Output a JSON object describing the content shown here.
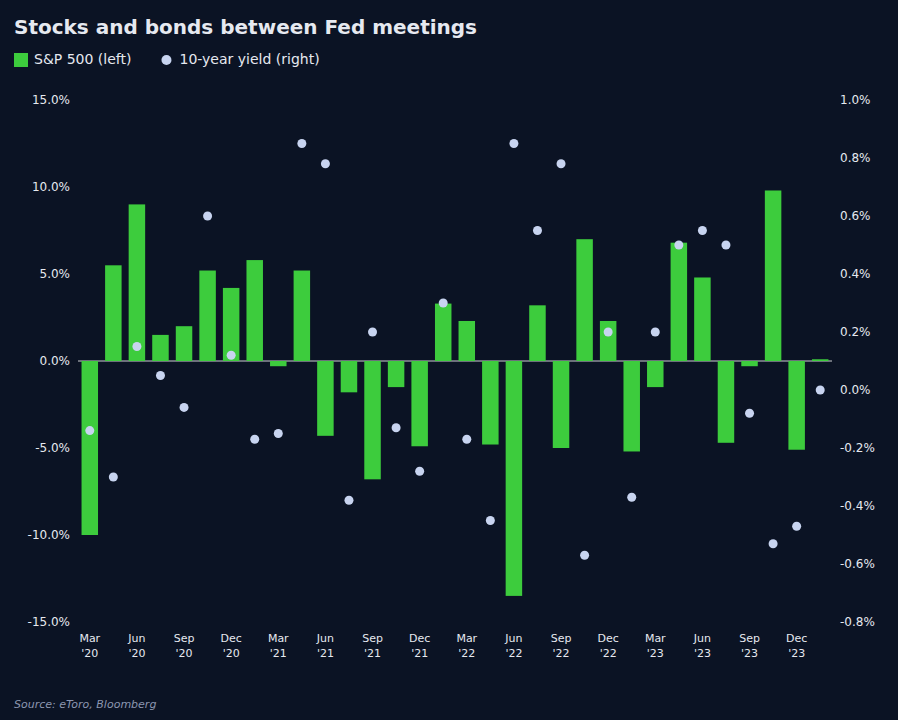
{
  "chart_data": {
    "type": "bar",
    "title": "Stocks and bonds between Fed meetings",
    "annotations": [
      "Source: eToro, Bloomberg"
    ],
    "categories": [
      "Mar\n'20",
      null,
      "Jun\n'20",
      null,
      "Sep\n'20",
      null,
      "Dec\n'20",
      null,
      "Mar\n'21",
      null,
      "Jun\n'21",
      null,
      "Sep\n'21",
      null,
      "Dec\n'21",
      null,
      "Mar\n'22",
      null,
      "Jun\n'22",
      null,
      "Sep\n'22",
      null,
      "Dec\n'22",
      null,
      "Mar\n'23",
      null,
      "Jun\n'23",
      null,
      "Sep\n'23",
      null,
      "Dec\n'23",
      null
    ],
    "series": [
      {
        "name": "S&P 500 (left)",
        "type": "bar",
        "color": "#3dcc3d",
        "values": [
          -10.0,
          5.5,
          9.0,
          1.5,
          2.0,
          5.2,
          4.2,
          5.8,
          -0.3,
          5.2,
          -4.3,
          -1.8,
          -6.8,
          -1.5,
          -4.9,
          3.3,
          2.3,
          -4.8,
          -13.5,
          3.2,
          -5.0,
          7.0,
          2.3,
          -5.2,
          -1.5,
          6.8,
          4.8,
          -4.7,
          -0.3,
          9.8,
          -5.1,
          0.1
        ]
      },
      {
        "name": "10-year yield (right)",
        "type": "scatter",
        "marker": "circle",
        "color": "#c8d4f0",
        "axis": "y2",
        "values": [
          -0.14,
          -0.3,
          0.15,
          0.05,
          -0.06,
          0.6,
          0.12,
          -0.17,
          -0.15,
          0.85,
          0.78,
          -0.38,
          0.2,
          -0.13,
          -0.28,
          0.3,
          -0.17,
          -0.45,
          0.85,
          0.55,
          0.78,
          -0.57,
          0.2,
          -0.37,
          0.2,
          0.5,
          0.55,
          0.5,
          -0.08,
          -0.53,
          -0.47,
          0.0
        ]
      }
    ],
    "ylim": [
      -15.0,
      15.0
    ],
    "yticks": [
      {
        "value": -15.0,
        "label": "-15.0%"
      },
      {
        "value": -10.0,
        "label": "-10.0%"
      },
      {
        "value": -5.0,
        "label": "-5.0%"
      },
      {
        "value": 0.0,
        "label": "0.0%"
      },
      {
        "value": 5.0,
        "label": "5.0%"
      },
      {
        "value": 10.0,
        "label": "10.0%"
      },
      {
        "value": 15.0,
        "label": "15.0%"
      }
    ],
    "y2lim": [
      -0.8,
      1.0
    ],
    "y2ticks": [
      {
        "value": -0.8,
        "label": "-0.8%"
      },
      {
        "value": -0.6,
        "label": "-0.6%"
      },
      {
        "value": -0.4,
        "label": "-0.4%"
      },
      {
        "value": -0.2,
        "label": "-0.2%"
      },
      {
        "value": 0.0,
        "label": "0.0%"
      },
      {
        "value": 0.2,
        "label": "0.2%"
      },
      {
        "value": 0.4,
        "label": "0.4%"
      },
      {
        "value": 0.6,
        "label": "0.6%"
      },
      {
        "value": 0.8,
        "label": "0.8%"
      },
      {
        "value": 1.0,
        "label": "1.0%"
      }
    ],
    "grid": false,
    "legend": "top-left"
  }
}
